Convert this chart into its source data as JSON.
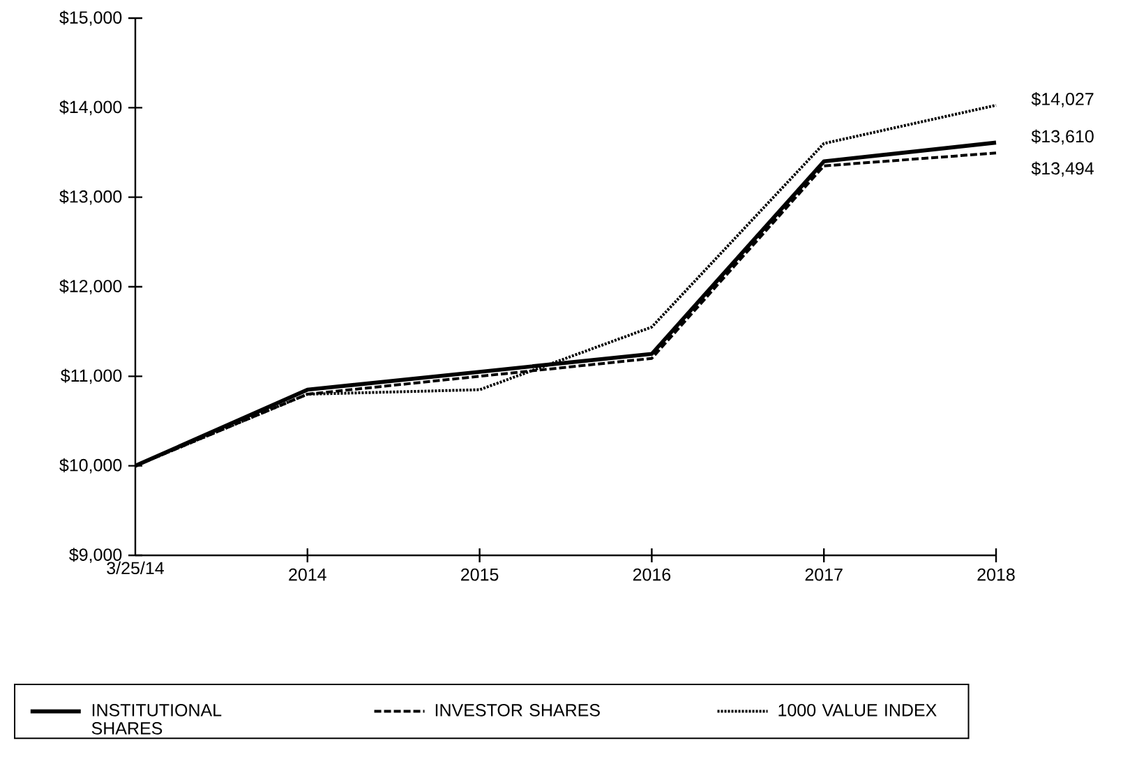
{
  "chart_data": {
    "type": "line",
    "categories": [
      "3/25/14",
      "2014",
      "2015",
      "2016",
      "2017",
      "2018"
    ],
    "series": [
      {
        "name": "INSTITUTIONAL SHARES",
        "color": "#000000",
        "line_style": "solid",
        "values": [
          10000,
          10850,
          11050,
          11250,
          13400,
          13610
        ]
      },
      {
        "name": "INVESTOR SHARES",
        "color": "#000000",
        "line_style": "dashed",
        "values": [
          10000,
          10800,
          11000,
          11200,
          13350,
          13494
        ]
      },
      {
        "name": "1000 VALUE INDEX",
        "color": "#000000",
        "line_style": "dotted",
        "values": [
          10000,
          10800,
          10850,
          11550,
          13600,
          14027
        ]
      }
    ],
    "ylim": [
      9000,
      15000
    ],
    "yticks": [
      {
        "value": 9000,
        "label": "$9,000"
      },
      {
        "value": 10000,
        "label": "$10,000"
      },
      {
        "value": 11000,
        "label": "$11,000"
      },
      {
        "value": 12000,
        "label": "$12,000"
      },
      {
        "value": 13000,
        "label": "$13,000"
      },
      {
        "value": 14000,
        "label": "$14,000"
      },
      {
        "value": 15000,
        "label": "$15,000"
      }
    ],
    "annotations": [
      {
        "text": "$14,027",
        "x": "2018",
        "y": 14027
      },
      {
        "text": "$13,610",
        "x": "2018",
        "y": 13610
      },
      {
        "text": "$13,494",
        "x": "2018",
        "y": 13494
      }
    ],
    "grid": false,
    "marker": "none",
    "legend": "bottom"
  }
}
